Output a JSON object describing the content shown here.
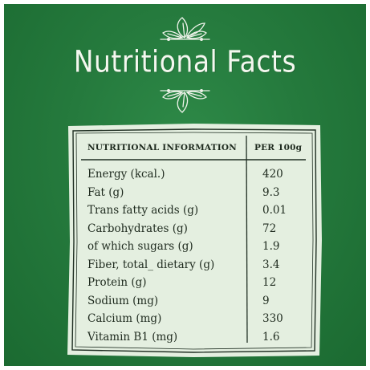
{
  "title": "Nutritional Facts",
  "table": {
    "header_name": "NUTRITIONAL INFORMATION",
    "header_value": "PER 100g",
    "rows": [
      {
        "label": "Energy (kcal.)",
        "value": "420"
      },
      {
        "label": "Fat (g)",
        "value": "9.3"
      },
      {
        "label": "Trans fatty acids  (g)",
        "value": "0.01"
      },
      {
        "label": "Carbohydrates (g)",
        "value": "72"
      },
      {
        "label": "of which sugars (g)",
        "value": "1.9"
      },
      {
        "label": "Fiber, total_ dietary (g)",
        "value": "3.4"
      },
      {
        "label": "Protein (g)",
        "value": "12"
      },
      {
        "label": "Sodium (mg)",
        "value": "9"
      },
      {
        "label": "Calcium (mg)",
        "value": "330"
      },
      {
        "label": "Vitamin B1 (mg)",
        "value": "1.6"
      }
    ]
  },
  "colors": {
    "background": "#257a3d",
    "card": "#e4efe0",
    "ink": "#1e2a1e",
    "title": "#f4f7ef"
  },
  "icons": [
    "leaf-sprig-icon"
  ]
}
